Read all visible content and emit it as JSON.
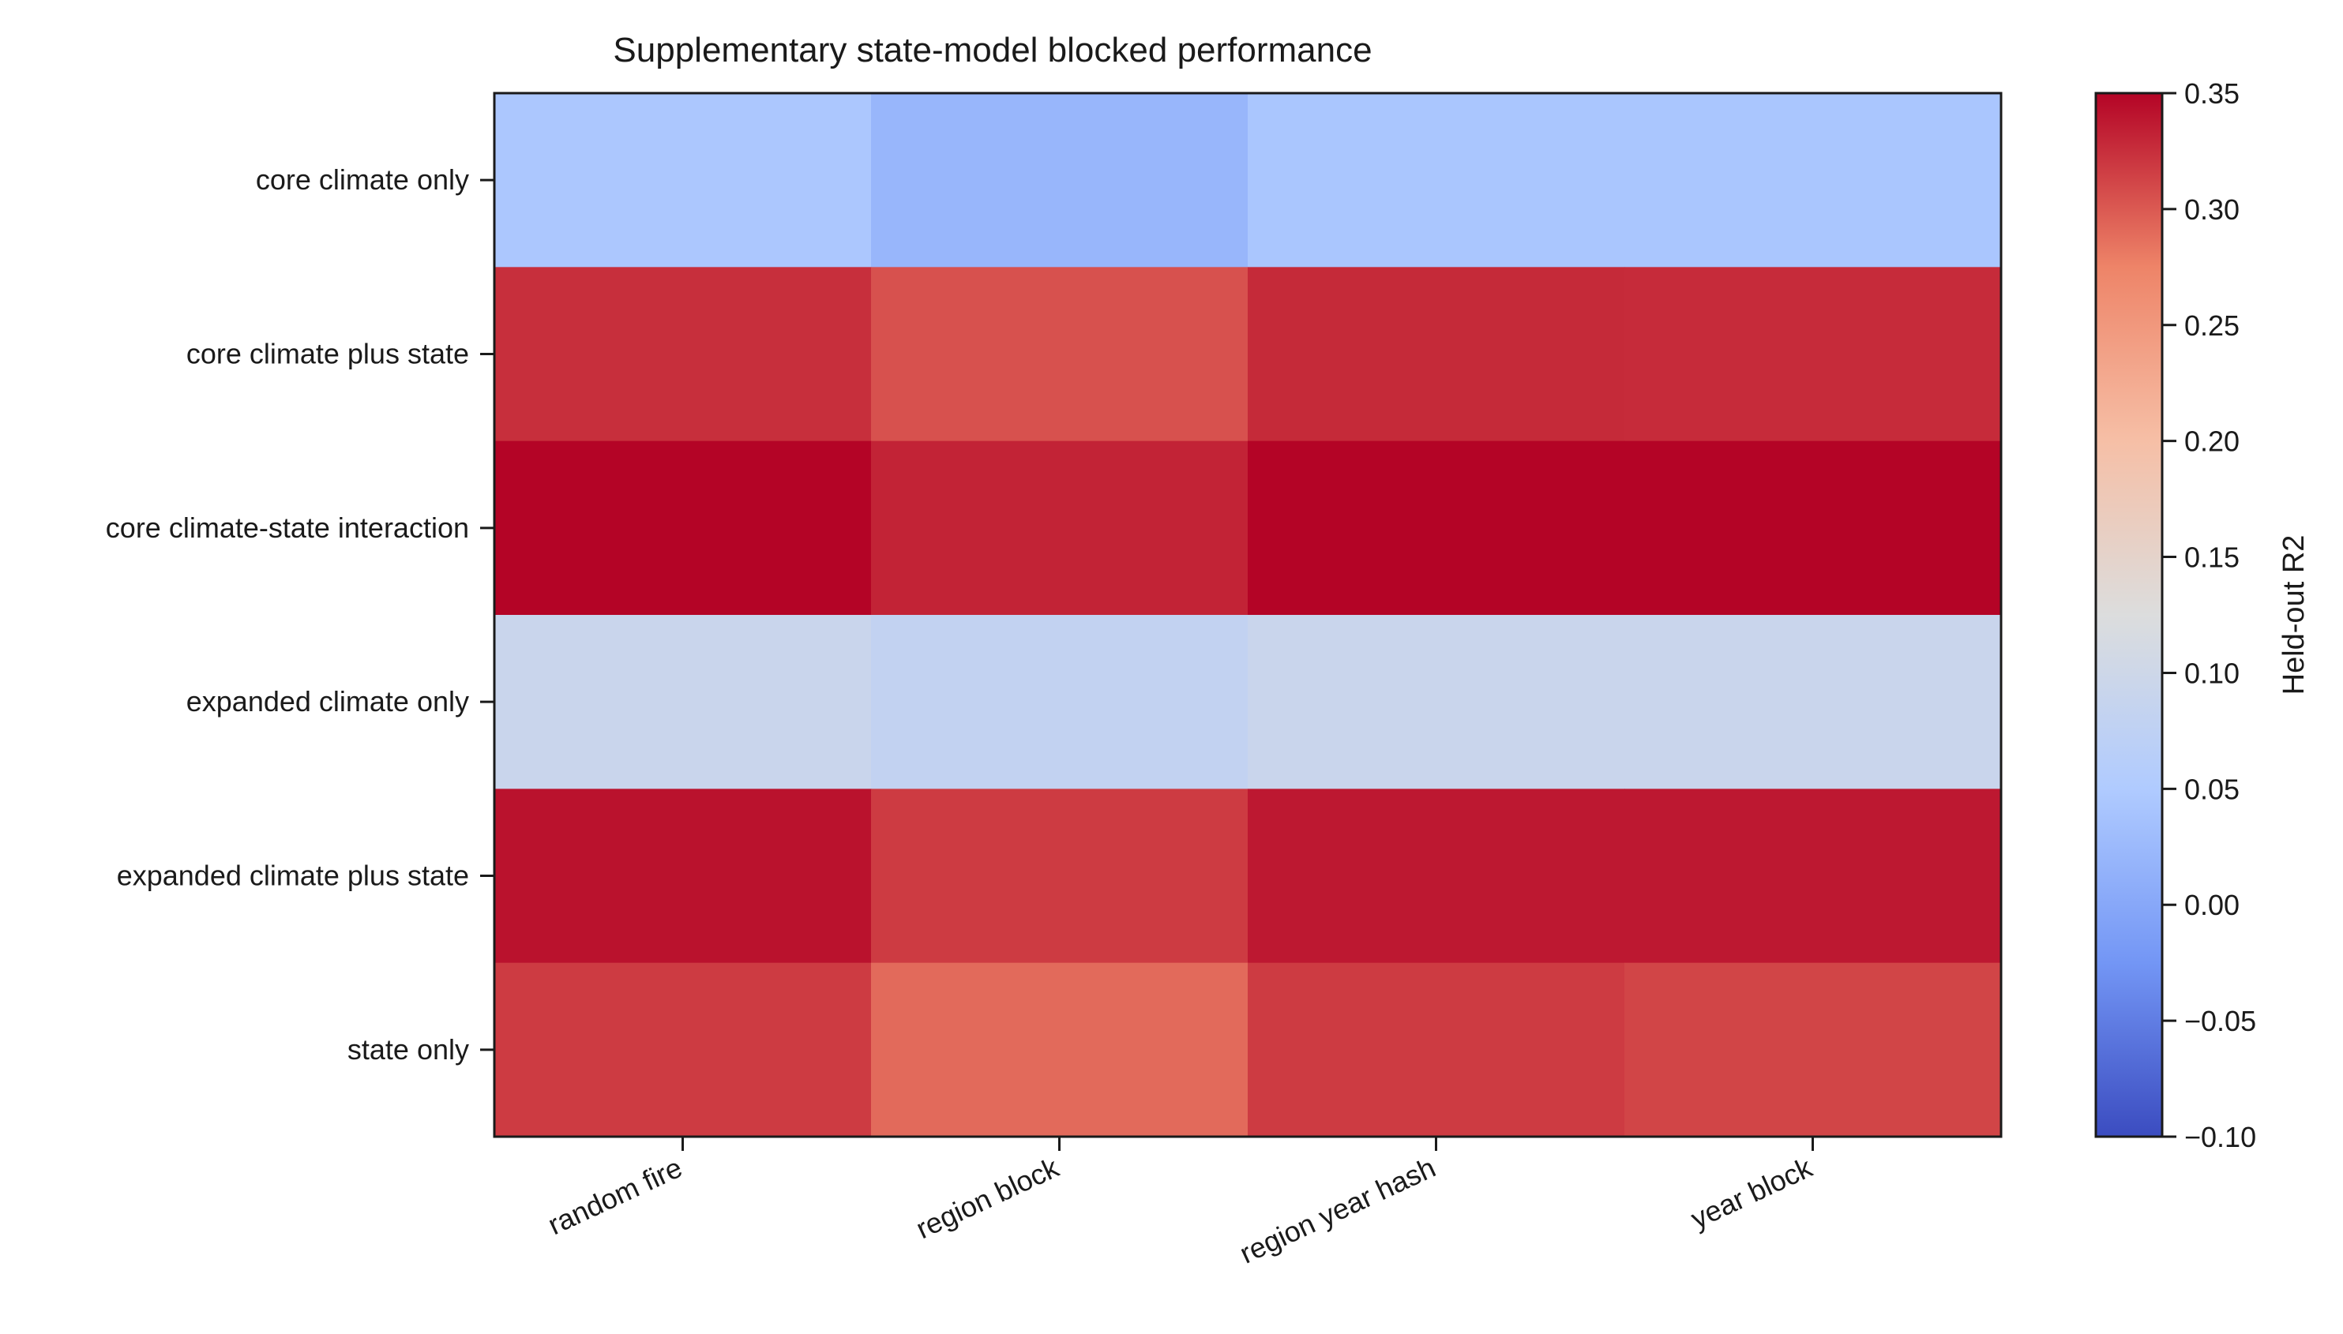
{
  "chart_data": {
    "type": "heatmap",
    "title": "Supplementary state-model blocked performance",
    "xlabel": "",
    "ylabel": "",
    "x_categories": [
      "random fire",
      "region block",
      "region year hash",
      "year block"
    ],
    "y_categories": [
      "core climate only",
      "core climate plus state",
      "core climate-state interaction",
      "expanded climate only",
      "expanded climate plus state",
      "state only"
    ],
    "values": [
      [
        0.045,
        0.02,
        0.043,
        0.043
      ],
      [
        0.325,
        0.305,
        0.328,
        0.327
      ],
      [
        0.35,
        0.332,
        0.35,
        0.35
      ],
      [
        0.092,
        0.08,
        0.092,
        0.092
      ],
      [
        0.342,
        0.318,
        0.338,
        0.338
      ],
      [
        0.318,
        0.29,
        0.318,
        0.312
      ]
    ],
    "colorbar": {
      "label": "Held-out R2",
      "range": [
        -0.1,
        0.35
      ],
      "ticks": [
        "0.35",
        "0.30",
        "0.25",
        "0.20",
        "0.15",
        "0.10",
        "0.05",
        "0.00",
        "−0.05",
        "−0.10"
      ],
      "tick_values": [
        0.35,
        0.3,
        0.25,
        0.2,
        0.15,
        0.1,
        0.05,
        0.0,
        -0.05,
        -0.1
      ],
      "colormap": "coolwarm",
      "colormap_stops": [
        "#3b4cc0",
        "#7396f5",
        "#b0cbff",
        "#dcdddd",
        "#f6bfa6",
        "#ee8468",
        "#b40426"
      ]
    },
    "grid": false
  }
}
